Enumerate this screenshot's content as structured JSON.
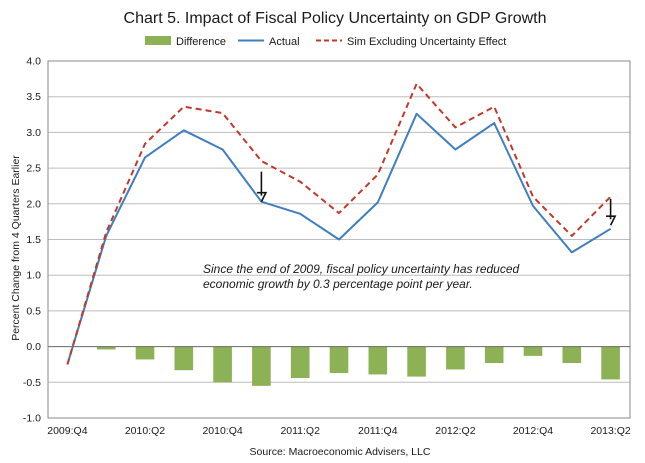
{
  "chart_data": {
    "type": "bar+line",
    "title": "Chart 5.  Impact of Fiscal Policy Uncertainty on GDP Growth",
    "ylabel": "Percent Change  from 4 Quarters Earlier",
    "xlabel": "",
    "source": "Source: Macroeconomic Advisers, LLC",
    "annotation": [
      "Since the end of 2009, fiscal policy uncertainty has reduced",
      "economic growth by 0.3 percentage point per year."
    ],
    "ylim": [
      -1.0,
      4.0
    ],
    "yticks": [
      -1.0,
      -0.5,
      0.0,
      0.5,
      1.0,
      1.5,
      2.0,
      2.5,
      3.0,
      3.5,
      4.0
    ],
    "yticklabels": [
      "-1.0",
      "-0.5",
      "0.0",
      "0.5",
      "1.0",
      "1.5",
      "2.0",
      "2.5",
      "3.0",
      "3.5",
      "4.0"
    ],
    "x": [
      "2009:Q4",
      "2010:Q1",
      "2010:Q2",
      "2010:Q3",
      "2010:Q4",
      "2011:Q1",
      "2011:Q2",
      "2011:Q3",
      "2011:Q4",
      "2012:Q1",
      "2012:Q2",
      "2012:Q3",
      "2012:Q4",
      "2013:Q1",
      "2013:Q2"
    ],
    "xticklabels": [
      "2009:Q4",
      "",
      "2010:Q2",
      "",
      "2010:Q4",
      "",
      "2011:Q2",
      "",
      "2011:Q4",
      "",
      "2012:Q2",
      "",
      "2012:Q4",
      "",
      "2013:Q2"
    ],
    "series": [
      {
        "name": "Difference",
        "kind": "bar",
        "color": "#8db255",
        "values": [
          0.0,
          -0.04,
          -0.18,
          -0.33,
          -0.5,
          -0.55,
          -0.44,
          -0.37,
          -0.39,
          -0.42,
          -0.32,
          -0.23,
          -0.13,
          -0.23,
          -0.46
        ]
      },
      {
        "name": "Actual",
        "kind": "line",
        "color": "#3f7fbf",
        "values": [
          -0.25,
          1.55,
          2.65,
          3.03,
          2.76,
          2.03,
          1.86,
          1.5,
          2.02,
          3.26,
          2.76,
          3.13,
          1.97,
          1.32,
          1.65
        ]
      },
      {
        "name": "Sim Excluding Uncertainty Effect",
        "kind": "line-dashed",
        "color": "#c0392b",
        "values": [
          -0.25,
          1.6,
          2.84,
          3.36,
          3.27,
          2.6,
          2.31,
          1.87,
          2.41,
          3.68,
          3.07,
          3.36,
          2.1,
          1.55,
          2.1
        ]
      }
    ],
    "arrows": [
      {
        "x": "2011:Q1",
        "from": 2.45,
        "to": 2.03
      },
      {
        "x": "2013:Q2",
        "from": 2.07,
        "to": 1.7
      }
    ],
    "legend": "top-center",
    "grid": "horizontal"
  }
}
